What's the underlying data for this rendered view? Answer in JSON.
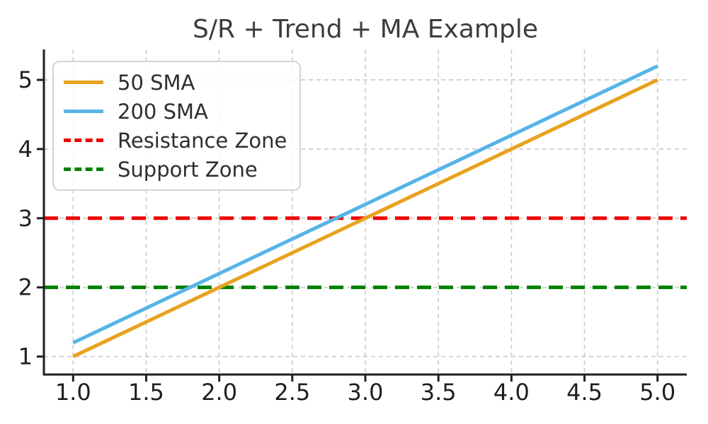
{
  "chart_data": {
    "type": "line",
    "title": "S/R + Trend + MA Example",
    "x": [
      1,
      2,
      3,
      4,
      5
    ],
    "series": [
      {
        "name": "50 SMA",
        "color": "#E8A21D",
        "style": "solid",
        "values": [
          1,
          2,
          3,
          4,
          5
        ]
      },
      {
        "name": "200 SMA",
        "color": "#56B4E9",
        "style": "solid",
        "values": [
          1.2,
          2.2,
          3.2,
          4.2,
          5.2
        ]
      }
    ],
    "hlines": [
      {
        "name": "Resistance Zone",
        "color": "#ED0000",
        "style": "dashed",
        "y": 3
      },
      {
        "name": "Support Zone",
        "color": "#008000",
        "style": "dashed",
        "y": 2
      }
    ],
    "xlabel": "",
    "ylabel": "",
    "xticks": [
      "1.0",
      "1.5",
      "2.0",
      "2.5",
      "3.0",
      "3.5",
      "4.0",
      "4.5",
      "5.0"
    ],
    "yticks": [
      "1",
      "2",
      "3",
      "4",
      "5"
    ],
    "xlim": [
      0.8,
      5.2
    ],
    "ylim": [
      0.74,
      5.44
    ],
    "grid": true,
    "legend_position": "upper-left",
    "colors": {
      "grid": "#d0d0d0",
      "spine": "#1f1f1f",
      "tick_label": "#1f1f1f",
      "title": "#3d3d3d",
      "legend_border": "#d4d4d4",
      "background": "#ffffff"
    }
  }
}
